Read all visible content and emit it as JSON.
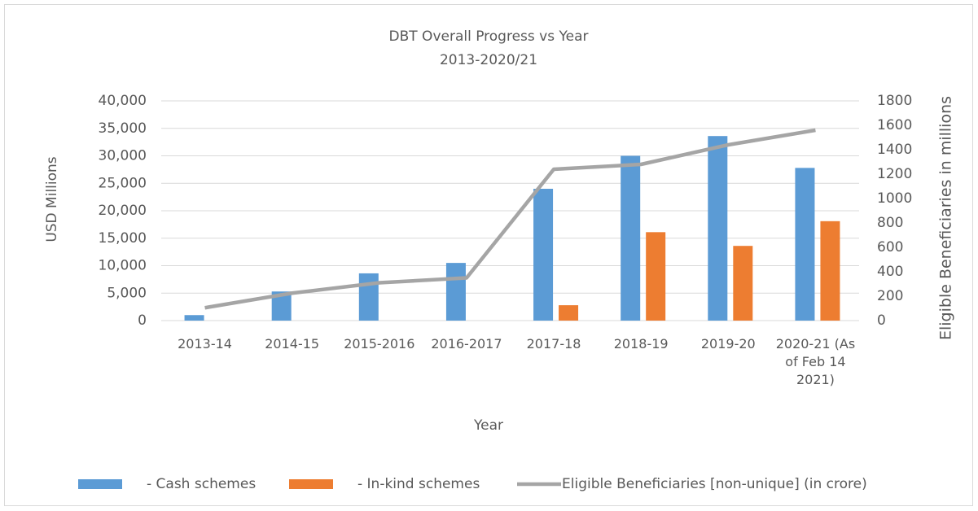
{
  "chart_data": {
    "type": "bar_line",
    "title": "DBT Overall Progress vs Year",
    "subtitle": "2013-2020/21",
    "x_label": "Year",
    "y_label": "USD Millions",
    "y2_label": "Eligible Beneficiaries in millions",
    "categories": [
      "2013-14",
      "2014-15",
      "2015-2016",
      "2016-2017",
      "2017-18",
      "2018-19",
      "2019-20",
      "2020-21 (As of Feb 14 2021)"
    ],
    "series": [
      {
        "name": "- Cash schemes",
        "type": "bar",
        "color": "#5b9bd5",
        "values": [
          1000,
          5300,
          8600,
          10500,
          24000,
          30000,
          33600,
          27800
        ]
      },
      {
        "name": "- In-kind schemes",
        "type": "bar",
        "color": "#ed7d31",
        "values": [
          null,
          null,
          null,
          null,
          2800,
          16100,
          13600,
          18100
        ]
      },
      {
        "name": "Eligible Beneficiaries [non-unique]  (in crore)",
        "type": "line",
        "axis": "y2",
        "color": "#a5a5a5",
        "values": [
          105,
          225,
          310,
          350,
          1240,
          1280,
          1440,
          1560
        ]
      }
    ],
    "ylim": [
      0,
      40000
    ],
    "yticks": [
      0,
      {
        "value": 5000,
        "label": "5,000"
      },
      {
        "value": 10000,
        "label": "10,000"
      },
      {
        "value": 15000,
        "label": "15,000"
      },
      {
        "value": 20000,
        "label": "20,000"
      },
      {
        "value": 25000,
        "label": "25,000"
      },
      {
        "value": 30000,
        "label": "30,000"
      },
      {
        "value": 35000,
        "label": "35,000"
      },
      {
        "value": 40000,
        "label": "40,000"
      }
    ],
    "y2lim": [
      0,
      1800
    ],
    "y2ticks": [
      0,
      200,
      400,
      600,
      800,
      1000,
      1200,
      1400,
      1600,
      1800
    ],
    "grid": true,
    "legend": "bottom"
  }
}
